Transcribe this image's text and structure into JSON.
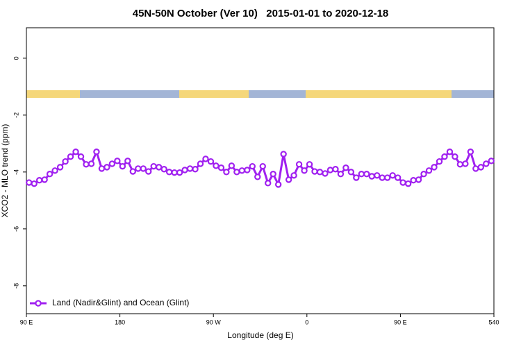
{
  "chart_data": {
    "type": "line",
    "title": "45N-50N October (Ver 10)   2015-01-01 to 2020-12-18",
    "xlabel": "Longitude (deg E)",
    "ylabel": "XCO2 - MLO trend (ppm)",
    "xlim": [
      90,
      540
    ],
    "ylim": [
      -8.98,
      1.07
    ],
    "xticks": [
      {
        "value": 90,
        "label": "90 E"
      },
      180,
      {
        "value": 270,
        "label": "90 W"
      },
      {
        "value": 360,
        "label": "0"
      },
      {
        "value": 450,
        "label": "90 E"
      },
      540
    ],
    "yticks": [
      0,
      -2,
      -4,
      -6,
      -8
    ],
    "legend": "bottom-left",
    "x": [
      92.5,
      97.5,
      102.5,
      107.5,
      112.5,
      117.5,
      122.5,
      127.5,
      132.5,
      137.5,
      142.5,
      147.5,
      152.5,
      157.5,
      162.5,
      167.5,
      172.5,
      177.5,
      182.5,
      187.5,
      192.5,
      197.5,
      202.5,
      207.5,
      212.5,
      217.5,
      222.5,
      227.5,
      232.5,
      237.5,
      242.5,
      247.5,
      252.5,
      257.5,
      262.5,
      267.5,
      272.5,
      277.5,
      282.5,
      287.5,
      292.5,
      297.5,
      302.5,
      307.5,
      312.5,
      317.5,
      322.5,
      327.5,
      332.5,
      337.5,
      342.5,
      347.5,
      352.5,
      357.5,
      362.5,
      367.5,
      372.5,
      377.5,
      382.5,
      387.5,
      392.5,
      397.5,
      402.5,
      407.5,
      412.5,
      417.5,
      422.5,
      427.5,
      432.5,
      437.5,
      442.5,
      447.5,
      452.5,
      457.5,
      462.5,
      467.5,
      472.5,
      477.5,
      482.5,
      487.5,
      492.5,
      497.5,
      502.5,
      507.5,
      512.5,
      517.5,
      522.5,
      527.5,
      532.5,
      537.5
    ],
    "series": [
      {
        "name": "Land (Nadir&Glint) and Ocean (Glint)",
        "color": "#a020f0",
        "values": [
          -4.37,
          -4.41,
          -4.29,
          -4.27,
          -4.07,
          -3.95,
          -3.83,
          -3.63,
          -3.46,
          -3.29,
          -3.46,
          -3.73,
          -3.71,
          -3.29,
          -3.88,
          -3.83,
          -3.71,
          -3.61,
          -3.8,
          -3.61,
          -3.98,
          -3.88,
          -3.88,
          -3.98,
          -3.8,
          -3.83,
          -3.9,
          -4.0,
          -4.02,
          -4.02,
          -3.93,
          -3.88,
          -3.9,
          -3.71,
          -3.54,
          -3.63,
          -3.78,
          -3.85,
          -4.0,
          -3.78,
          -4.0,
          -3.95,
          -3.93,
          -3.8,
          -4.17,
          -3.8,
          -4.39,
          -4.07,
          -4.44,
          -3.37,
          -4.27,
          -4.12,
          -3.73,
          -3.95,
          -3.73,
          -3.98,
          -4.0,
          -4.05,
          -3.93,
          -3.9,
          -4.07,
          -3.85,
          -4.0,
          -4.2,
          -4.07,
          -4.07,
          -4.15,
          -4.12,
          -4.2,
          -4.2,
          -4.12,
          -4.2,
          -4.37,
          -4.41,
          -4.29,
          -4.27,
          -4.07,
          -3.95,
          -3.83,
          -3.63,
          -3.46,
          -3.29,
          -3.46,
          -3.73,
          -3.71,
          -3.29,
          -3.88,
          -3.83,
          -3.71,
          -3.61
        ]
      }
    ]
  }
}
